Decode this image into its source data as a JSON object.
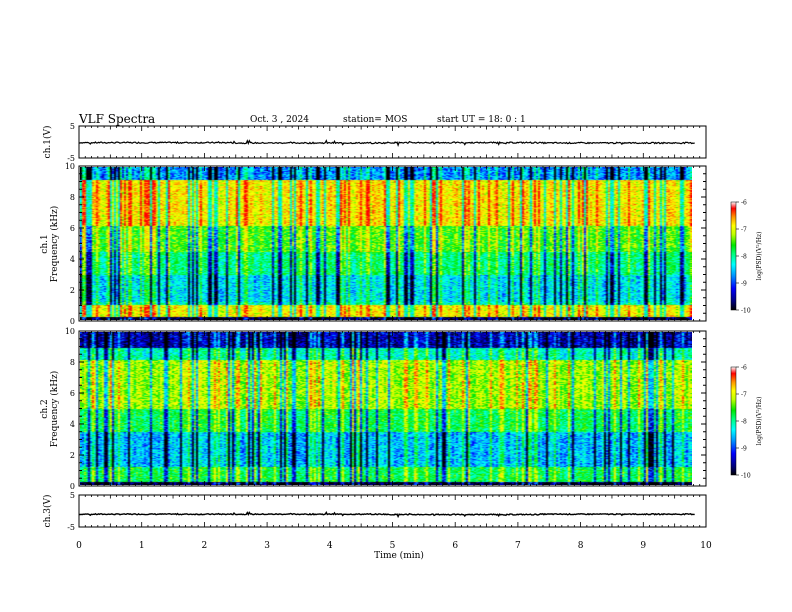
{
  "header": {
    "title": "VLF Spectra",
    "date": "Oct. 3 , 2024",
    "station": "station= MOS",
    "start_ut": "start UT = 18: 0 : 1"
  },
  "chart_data": [
    {
      "type": "line",
      "panel": "ch1-waveform",
      "ylabel": "ch.1(V)",
      "ylim": [
        -5,
        5
      ],
      "yticks": [
        "5",
        "-5"
      ],
      "series": [
        {
          "values": [
            -0.2,
            -0.3,
            -0.2,
            -0.3,
            -0.2
          ]
        }
      ]
    },
    {
      "type": "heatmap",
      "panel": "ch1-spectrogram",
      "ylabel": "ch.1\nFrequency (kHz)",
      "ylim": [
        0,
        10
      ],
      "yticks": [
        "0",
        "2",
        "4",
        "6",
        "8",
        "10"
      ],
      "colorbar": {
        "label": "log(PSD)(V²/Hz)",
        "range": [
          -10,
          -6
        ],
        "ticks": [
          "-6",
          "-7",
          "-8",
          "-9",
          "-10"
        ]
      }
    },
    {
      "type": "heatmap",
      "panel": "ch2-spectrogram",
      "ylabel": "ch.2\nFrequency (kHz)",
      "ylim": [
        0,
        10
      ],
      "yticks": [
        "0",
        "2",
        "4",
        "6",
        "8",
        "10"
      ],
      "colorbar": {
        "label": "log(PSD)(V²/Hz)",
        "range": [
          -10,
          -6
        ],
        "ticks": [
          "-6",
          "-7",
          "-8",
          "-9",
          "-10"
        ]
      }
    },
    {
      "type": "line",
      "panel": "ch3-waveform",
      "ylabel": "ch.3(V)",
      "ylim": [
        -5,
        5
      ],
      "yticks": [
        "5",
        "-5"
      ],
      "series": [
        {
          "values": [
            -1.0,
            -1.0,
            -1.1,
            -1.0,
            -1.0
          ]
        }
      ]
    }
  ],
  "x_axis": {
    "label": "Time (min)",
    "range": [
      0,
      10
    ],
    "ticks": [
      "0",
      "1",
      "2",
      "3",
      "4",
      "5",
      "6",
      "7",
      "8",
      "9",
      "10"
    ],
    "data_end": 9.82
  },
  "colors": {
    "palette": [
      "#000000",
      "#00007a",
      "#0000ff",
      "#0096ff",
      "#00ffff",
      "#00ff7a",
      "#00e600",
      "#bfff00",
      "#ffff00",
      "#ff9600",
      "#ff0000",
      "#ffffff"
    ]
  }
}
